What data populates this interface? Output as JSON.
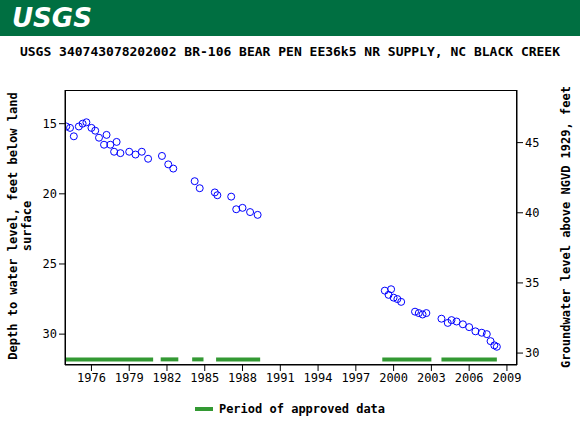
{
  "header": "USGS",
  "chart_data": {
    "type": "scatter",
    "title": "USGS 340743078202002 BR-106 BEAR PEN EE36k5 NR SUPPLY, NC BLACK CREEK",
    "y_label": [
      "Depth to water level, feet below land",
      "surface"
    ],
    "y2_label": "Groundwater level above NGVD 1929, feet",
    "marker": "open_circle",
    "color": "#0000ff",
    "xlim": [
      1973.9,
      2009.8
    ],
    "xticks": [
      1976,
      1979,
      1982,
      1985,
      1988,
      1991,
      1994,
      1997,
      2000,
      2003,
      2006,
      2009
    ],
    "ylim": [
      12.6,
      32.2
    ],
    "yticks": [
      15,
      20,
      25,
      30
    ],
    "y2lim": [
      29.15,
      48.75
    ],
    "y2ticks": [
      30,
      35,
      40,
      45
    ],
    "grid": false,
    "x": [
      1974.0,
      1974.3,
      1974.6,
      1975.0,
      1975.3,
      1975.6,
      1976.0,
      1976.3,
      1976.6,
      1977.0,
      1977.2,
      1977.5,
      1977.8,
      1978.0,
      1978.3,
      1979.0,
      1979.5,
      1980.0,
      1980.5,
      1981.6,
      1982.1,
      1982.5,
      1984.2,
      1984.6,
      1985.8,
      1986.0,
      1987.1,
      1987.5,
      1988.0,
      1988.6,
      1989.2,
      1999.3,
      1999.6,
      1999.8,
      2000.0,
      2000.3,
      2000.6,
      2001.7,
      2002.0,
      2002.3,
      2002.6,
      2003.8,
      2004.3,
      2004.6,
      2005.0,
      2005.5,
      2006.0,
      2006.5,
      2007.0,
      2007.4,
      2007.7,
      2008.0,
      2008.2
    ],
    "values": [
      15.2,
      15.3,
      15.9,
      15.2,
      15.0,
      14.9,
      15.3,
      15.5,
      16.0,
      16.5,
      15.8,
      16.5,
      17.0,
      16.3,
      17.1,
      17.0,
      17.2,
      17.0,
      17.5,
      17.3,
      17.9,
      18.2,
      19.1,
      19.6,
      19.9,
      20.1,
      20.2,
      21.1,
      21.0,
      21.3,
      21.5,
      26.9,
      27.2,
      26.8,
      27.4,
      27.5,
      27.7,
      28.4,
      28.5,
      28.6,
      28.5,
      28.9,
      29.2,
      29.0,
      29.1,
      29.3,
      29.5,
      29.8,
      29.9,
      30.0,
      30.5,
      30.8,
      30.9
    ],
    "approved_periods": {
      "name": "Period of approved data",
      "color": "#339933",
      "depth": 31.8,
      "ranges": [
        [
          1973.9,
          1980.9
        ],
        [
          1981.5,
          1982.9
        ],
        [
          1984.0,
          1984.9
        ],
        [
          1985.9,
          1989.4
        ],
        [
          1999.1,
          2003.0
        ],
        [
          2003.8,
          2008.2
        ]
      ]
    }
  }
}
